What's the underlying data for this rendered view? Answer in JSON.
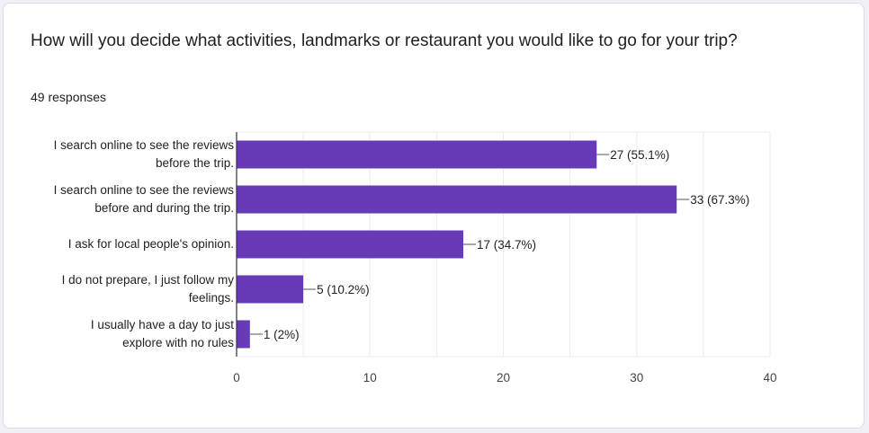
{
  "question": {
    "title": "How will you decide what activities, landmarks or restaurant you would like to go for your trip?",
    "responses": "49 responses"
  },
  "colors": {
    "bar": "#673ab7",
    "grid": "#ebebeb",
    "axis": "#333333"
  },
  "chart_data": {
    "type": "bar",
    "orientation": "horizontal",
    "categories": [
      [
        "I search online to see the reviews",
        "before the trip."
      ],
      [
        "I search online to see the reviews",
        "before and during the trip."
      ],
      [
        "I ask for local people's opinion."
      ],
      [
        "I do not prepare, I just follow my",
        "feelings."
      ],
      [
        "I usually have a day to just",
        "explore with no rules"
      ]
    ],
    "values": [
      27,
      33,
      17,
      5,
      1
    ],
    "data_labels": [
      "27 (55.1%)",
      "33 (67.3%)",
      "17 (34.7%)",
      "5 (10.2%)",
      "1 (2%)"
    ],
    "xlim": [
      0,
      40
    ],
    "xticks": [
      0,
      10,
      20,
      30,
      40
    ],
    "grid": true,
    "legend": "none"
  }
}
